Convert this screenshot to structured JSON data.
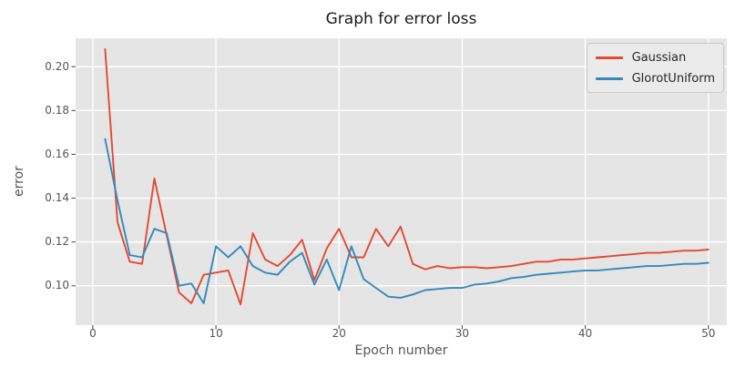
{
  "chart_data": {
    "type": "line",
    "title": "Graph for error loss",
    "xlabel": "Epoch number",
    "ylabel": "error",
    "x": [
      1,
      2,
      3,
      4,
      5,
      6,
      7,
      8,
      9,
      10,
      11,
      12,
      13,
      14,
      15,
      16,
      17,
      18,
      19,
      20,
      21,
      22,
      23,
      24,
      25,
      26,
      27,
      28,
      29,
      30,
      31,
      32,
      33,
      34,
      35,
      36,
      37,
      38,
      39,
      40,
      41,
      42,
      43,
      44,
      45,
      46,
      47,
      48,
      49,
      50
    ],
    "series": [
      {
        "name": "Gaussian",
        "color": "#E24A33",
        "values": [
          0.208,
          0.129,
          0.111,
          0.11,
          0.149,
          0.123,
          0.097,
          0.092,
          0.105,
          0.106,
          0.107,
          0.0915,
          0.124,
          0.112,
          0.109,
          0.114,
          0.121,
          0.1025,
          0.117,
          0.126,
          0.113,
          0.113,
          0.126,
          0.118,
          0.127,
          0.11,
          0.1075,
          0.109,
          0.108,
          0.1085,
          0.1085,
          0.108,
          0.1085,
          0.109,
          0.11,
          0.111,
          0.111,
          0.112,
          0.112,
          0.1125,
          0.113,
          0.1135,
          0.114,
          0.1145,
          0.115,
          0.115,
          0.1155,
          0.116,
          0.116,
          0.1165
        ]
      },
      {
        "name": "GlorotUniform",
        "color": "#348ABD",
        "values": [
          0.167,
          0.139,
          0.114,
          0.113,
          0.126,
          0.124,
          0.1,
          0.101,
          0.092,
          0.118,
          0.113,
          0.118,
          0.109,
          0.106,
          0.105,
          0.111,
          0.115,
          0.1005,
          0.112,
          0.098,
          0.118,
          0.103,
          0.099,
          0.095,
          0.0945,
          0.096,
          0.098,
          0.0985,
          0.099,
          0.099,
          0.1005,
          0.101,
          0.102,
          0.1035,
          0.104,
          0.105,
          0.1055,
          0.106,
          0.1065,
          0.107,
          0.107,
          0.1075,
          0.108,
          0.1085,
          0.109,
          0.109,
          0.1095,
          0.11,
          0.11,
          0.1105
        ]
      }
    ],
    "xlim": [
      -1.4,
      51.5
    ],
    "ylim": [
      0.082,
      0.213
    ],
    "x_ticks": [
      0,
      10,
      20,
      30,
      40,
      50
    ],
    "x_tick_labels": [
      "0",
      "10",
      "20",
      "30",
      "40",
      "50"
    ],
    "y_ticks": [
      0.1,
      0.12,
      0.14,
      0.16,
      0.18,
      0.2
    ],
    "y_tick_labels": [
      "0.10",
      "0.12",
      "0.14",
      "0.16",
      "0.18",
      "0.20"
    ],
    "grid": true,
    "legend": {
      "position": "upper-right",
      "entries": [
        "Gaussian",
        "GlorotUniform"
      ]
    },
    "colors": {
      "plot_bg": "#E5E5E5",
      "grid": "#FFFFFF",
      "tick_text": "#555555",
      "axis_label_text": "#555555",
      "title_text": "#1A1A1A",
      "legend_text": "#262626",
      "legend_bg": "#EBEBEB",
      "legend_border": "#C9C9C9"
    }
  }
}
